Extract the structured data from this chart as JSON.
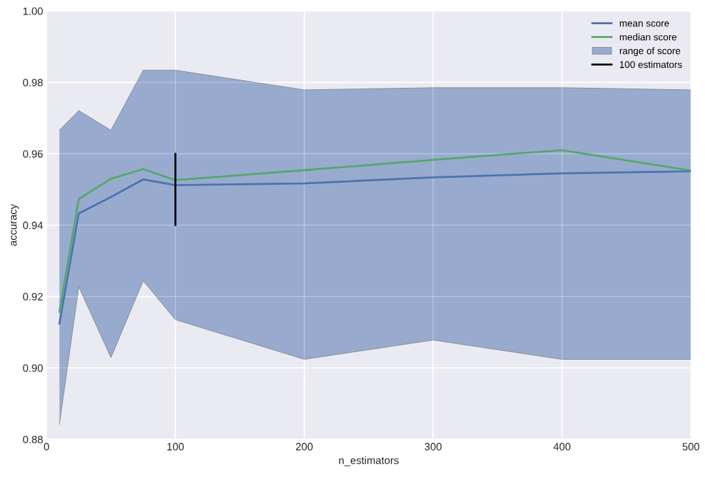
{
  "chart_data": {
    "type": "line",
    "xlabel": "n_estimators",
    "ylabel": "accuracy",
    "x": [
      10,
      25,
      50,
      75,
      100,
      200,
      300,
      400,
      500
    ],
    "series": [
      {
        "name": "mean score",
        "color": "#4c72b0",
        "values": [
          0.9124,
          0.9433,
          0.9479,
          0.9528,
          0.9512,
          0.9517,
          0.9534,
          0.9545,
          0.9551
        ]
      },
      {
        "name": "median score",
        "color": "#55a868",
        "values": [
          0.9158,
          0.9473,
          0.953,
          0.9557,
          0.9526,
          0.9554,
          0.9583,
          0.961,
          0.9553
        ]
      },
      {
        "type": "line",
        "color": "#808080",
        "values": [
          0.8842,
          0.9227,
          0.9029,
          0.9244,
          0.9135,
          0.9024,
          0.9078,
          0.9024,
          0.9024
        ]
      },
      {
        "name": "range of score",
        "type": "area",
        "color": "#98abcf",
        "values": [
          0.9666,
          0.9721,
          0.9666,
          0.9834,
          0.9834,
          0.9779,
          0.9785,
          0.9785,
          0.9779
        ]
      },
      {
        "name": "100 estimators",
        "color": "#000000",
        "x": [
          100,
          100
        ],
        "values": [
          0.94,
          0.96
        ]
      }
    ],
    "xlim": [
      0,
      500
    ],
    "xticks": [
      0,
      100,
      200,
      300,
      400,
      500
    ],
    "ylim": [
      0.88,
      1.0
    ],
    "yticks": [
      {
        "value": 0.88,
        "label": "0.88"
      },
      {
        "value": 0.9,
        "label": "0.90"
      },
      {
        "value": 0.92,
        "label": "0.92"
      },
      {
        "value": 0.94,
        "label": "0.94"
      },
      {
        "value": 0.96,
        "label": "0.96"
      },
      {
        "value": 0.98,
        "label": "0.98"
      },
      {
        "value": 1.0,
        "label": "1.00"
      }
    ],
    "grid": true,
    "legend": "top right"
  }
}
